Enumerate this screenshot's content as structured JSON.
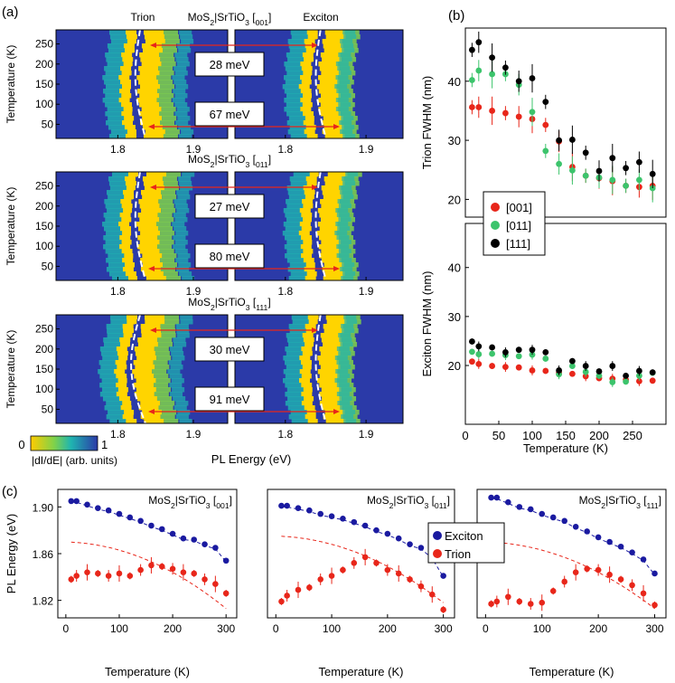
{
  "panel_labels": {
    "a": "(a)",
    "b": "(b)",
    "c": "(c)"
  },
  "colors": {
    "exciton": "#1a1aa0",
    "trion": "#e8261a",
    "c011": "#3cc46c",
    "c111": "#000000"
  },
  "chart_data": [
    {
      "id": "a",
      "type": "heatmap",
      "xlabel": "PL Energy (eV)",
      "ylabel": "Temperature (K)",
      "yticks": [
        50,
        100,
        150,
        200,
        250
      ],
      "ylim": [
        15,
        285
      ],
      "colorbar": {
        "min_label": "0",
        "max_label": "1",
        "label": "|dI/dE| (arb. units)"
      },
      "panels": [
        {
          "title": "MoS2|SrTiO3 [001]",
          "trion_label": "Trion",
          "exciton_label": "Exciton",
          "annotations": [
            "28 meV",
            "67 meV"
          ],
          "xticks_left": [
            "1.8",
            "1.9"
          ],
          "xticks_right": [
            "1.8",
            "1.9"
          ]
        },
        {
          "title": "MoS2|SrTiO3 [011]",
          "annotations": [
            "27 meV",
            "80 meV"
          ],
          "xticks_left": [
            "1.8",
            "1.9"
          ],
          "xticks_right": [
            "1.8",
            "1.9"
          ]
        },
        {
          "title": "MoS2|SrTiO3 [111]",
          "annotations": [
            "30 meV",
            "91 meV"
          ],
          "xticks_left": [
            "1.8",
            "1.9"
          ],
          "xticks_right": [
            "1.8",
            "1.9"
          ]
        }
      ]
    },
    {
      "id": "b",
      "type": "scatter",
      "xlabel": "Temperature (K)",
      "xlim": [
        0,
        300
      ],
      "xticks": [
        0,
        50,
        100,
        150,
        200,
        250
      ],
      "legend": [
        "[001]",
        "[011]",
        "[111]"
      ],
      "subplots": [
        {
          "ylabel": "Trion FWHM (nm)",
          "ylim": [
            17,
            49
          ],
          "yticks": [
            20,
            30,
            40
          ],
          "x": [
            10,
            20,
            40,
            60,
            80,
            100,
            120,
            140,
            160,
            180,
            200,
            220,
            240,
            260,
            280
          ],
          "series": [
            {
              "name": "[001]",
              "values": [
                35.6,
                35.6,
                35.0,
                34.6,
                34.0,
                33.6,
                32.6,
                29.8,
                25.5,
                24.0,
                23.6,
                23.1,
                22.3,
                22.1,
                22.3
              ]
            },
            {
              "name": "[011]",
              "values": [
                40.2,
                41.8,
                41.2,
                41.2,
                39.4,
                34.8,
                28.2,
                26.0,
                24.9,
                24.0,
                23.7,
                23.3,
                22.3,
                23.3,
                21.9
              ]
            },
            {
              "name": "[111]",
              "values": [
                45.3,
                46.6,
                44.0,
                42.3,
                40.0,
                40.5,
                36.5,
                30.0,
                30.1,
                27.9,
                24.8,
                27.0,
                25.3,
                26.3,
                24.3
              ]
            }
          ]
        },
        {
          "ylabel": "Exciton FWHM (nm)",
          "ylim": [
            8,
            49
          ],
          "yticks": [
            20,
            30,
            40
          ],
          "x": [
            10,
            20,
            40,
            60,
            80,
            100,
            120,
            140,
            160,
            180,
            200,
            220,
            240,
            260,
            280
          ],
          "series": [
            {
              "name": "[001]",
              "values": [
                20.8,
                20.3,
                19.9,
                19.7,
                19.6,
                19.0,
                18.9,
                18.5,
                18.3,
                17.8,
                17.4,
                17.3,
                17.1,
                16.8,
                16.9
              ]
            },
            {
              "name": "[011]",
              "values": [
                22.8,
                22.3,
                22.4,
                22.1,
                21.9,
                22.2,
                21.4,
                18.2,
                19.9,
                18.7,
                17.9,
                16.6,
                16.7,
                17.9,
                18.5
              ]
            },
            {
              "name": "[111]",
              "values": [
                24.9,
                23.9,
                23.7,
                22.7,
                23.2,
                23.2,
                22.7,
                19.0,
                20.9,
                19.9,
                18.8,
                19.9,
                17.9,
                18.9,
                18.6
              ]
            }
          ]
        }
      ]
    },
    {
      "id": "c",
      "type": "scatter",
      "xlabel": "Temperature (K)",
      "ylabel": "PL Energy (eV)",
      "xlim": [
        -15,
        320
      ],
      "ylim": [
        1.805,
        1.915
      ],
      "xticks": [
        0,
        100,
        200,
        300
      ],
      "yticks": [
        1.82,
        1.86,
        1.9
      ],
      "ytick_labels": [
        "1.82",
        "1.86",
        "1.90"
      ],
      "legend": [
        "Exciton",
        "Trion"
      ],
      "panels": [
        {
          "title": "MoS2|SrTiO3 [001]",
          "exciton": {
            "x": [
              10,
              20,
              40,
              60,
              80,
              100,
              120,
              140,
              160,
              180,
              200,
              220,
              240,
              260,
              280,
              300
            ],
            "values": [
              1.905,
              1.905,
              1.902,
              1.899,
              1.897,
              1.894,
              1.891,
              1.888,
              1.884,
              1.881,
              1.877,
              1.873,
              1.872,
              1.868,
              1.865,
              1.854
            ]
          },
          "trion": {
            "x": [
              10,
              20,
              40,
              60,
              80,
              100,
              120,
              140,
              160,
              180,
              200,
              220,
              240,
              260,
              280,
              300
            ],
            "values": [
              1.838,
              1.841,
              1.844,
              1.843,
              1.841,
              1.843,
              1.841,
              1.846,
              1.85,
              1.849,
              1.847,
              1.844,
              1.843,
              1.838,
              1.834,
              1.826
            ]
          },
          "trion_fit_start": 1.87
        },
        {
          "title": "MoS2|SrTiO3 [011]",
          "exciton": {
            "x": [
              10,
              20,
              40,
              60,
              80,
              100,
              120,
              140,
              160,
              180,
              200,
              220,
              240,
              260,
              280,
              300
            ],
            "values": [
              1.901,
              1.901,
              1.899,
              1.897,
              1.894,
              1.892,
              1.89,
              1.887,
              1.884,
              1.88,
              1.877,
              1.873,
              1.868,
              1.865,
              1.857,
              1.841
            ]
          },
          "trion": {
            "x": [
              10,
              20,
              40,
              60,
              80,
              100,
              120,
              140,
              160,
              180,
              200,
              220,
              240,
              260,
              280,
              300
            ],
            "values": [
              1.819,
              1.824,
              1.829,
              1.831,
              1.838,
              1.841,
              1.846,
              1.852,
              1.857,
              1.852,
              1.846,
              1.843,
              1.838,
              1.832,
              1.825,
              1.812
            ]
          },
          "trion_fit_start": 1.875
        },
        {
          "title": "MoS2|SrTiO3 [111]",
          "exciton": {
            "x": [
              10,
              20,
              40,
              60,
              80,
              100,
              120,
              140,
              160,
              180,
              200,
              220,
              240,
              260,
              280,
              300
            ],
            "values": [
              1.908,
              1.908,
              1.904,
              1.9,
              1.898,
              1.894,
              1.891,
              1.888,
              1.883,
              1.879,
              1.874,
              1.87,
              1.866,
              1.861,
              1.855,
              1.843
            ]
          },
          "trion": {
            "x": [
              10,
              20,
              40,
              60,
              80,
              100,
              120,
              140,
              160,
              180,
              200,
              220,
              240,
              260,
              280,
              300
            ],
            "values": [
              1.817,
              1.819,
              1.823,
              1.819,
              1.817,
              1.818,
              1.828,
              1.836,
              1.844,
              1.847,
              1.846,
              1.842,
              1.838,
              1.833,
              1.826,
              1.816
            ]
          },
          "trion_fit_start": 1.87
        }
      ]
    }
  ]
}
